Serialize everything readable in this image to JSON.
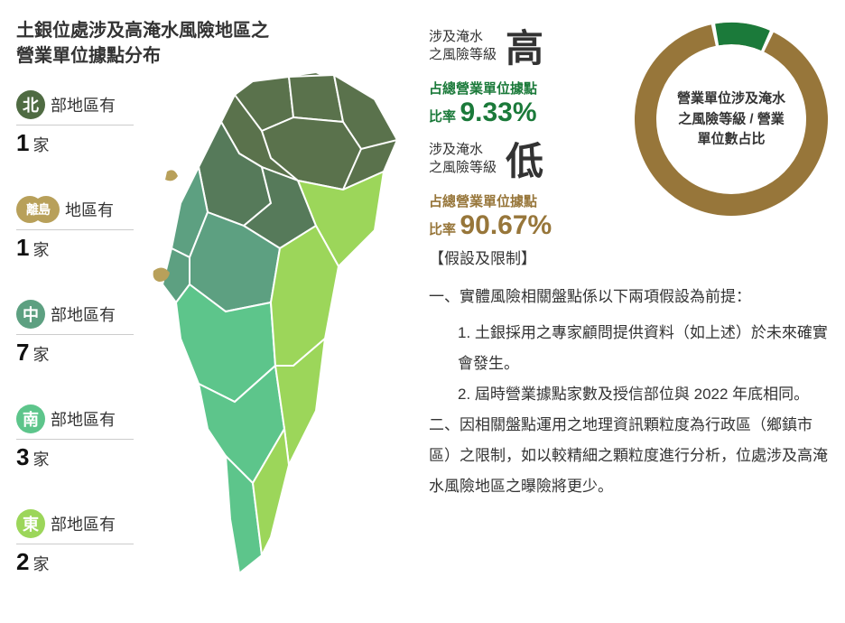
{
  "title_line1": "土銀位處涉及高淹水風險地區之",
  "title_line2": "營業單位據點分布",
  "regions": [
    {
      "badge": "北",
      "badge_color": "#4f6b42",
      "text": "部地區有",
      "count": "1",
      "unit": "家"
    },
    {
      "badge": "離島",
      "badge_color": "#b8a05a",
      "text": "地區有",
      "count": "1",
      "unit": "家",
      "island": true
    },
    {
      "badge": "中",
      "badge_color": "#5da081",
      "text": "部地區有",
      "count": "7",
      "unit": "家"
    },
    {
      "badge": "南",
      "badge_color": "#5dc58b",
      "text": "部地區有",
      "count": "3",
      "unit": "家"
    },
    {
      "badge": "東",
      "badge_color": "#9cd65a",
      "text": "部地區有",
      "count": "2",
      "unit": "家"
    }
  ],
  "risk_high": {
    "label1": "涉及淹水",
    "label2": "之風險等級",
    "level": "高",
    "level_color": "#333333",
    "sub_label": "占總營業單位據點",
    "sub_prefix": "比率",
    "pct": "9.33%",
    "color": "#1b7a3a"
  },
  "risk_low": {
    "label1": "涉及淹水",
    "label2": "之風險等級",
    "level": "低",
    "level_color": "#333333",
    "sub_label": "占總營業單位據點",
    "sub_prefix": "比率",
    "pct": "90.67%",
    "color": "#97763a"
  },
  "donut": {
    "high_pct": 9.33,
    "low_pct": 90.67,
    "high_color": "#1b7a3a",
    "low_color": "#97763a",
    "background": "#ffffff",
    "stroke_width": 24,
    "center_text1": "營業單位涉及淹水",
    "center_text2": "之風險等級 / 營業",
    "center_text3": "單位數占比"
  },
  "assumptions": {
    "title": "【假設及限制】",
    "items": [
      {
        "num": "一、",
        "text": "實體風險相關盤點係以下兩項假設為前提：",
        "subs": [
          "1. 土銀採用之專家顧問提供資料（如上述）於未來確實會發生。",
          "2. 屆時營業據點家數及授信部位與 2022 年底相同。"
        ]
      },
      {
        "num": "二、",
        "text": "因相關盤點運用之地理資訊顆粒度為行政區（鄉鎮市區）之限制，如以較精細之顆粒度進行分析，位處涉及高淹水風險地區之曝險將更少。",
        "subs": []
      }
    ]
  },
  "map_colors": {
    "north": "#5a724c",
    "central_north": "#567a5a",
    "central": "#5da081",
    "south": "#5dc58b",
    "east": "#9cd65a",
    "island": "#b8a05a",
    "stroke": "#ffffff"
  }
}
